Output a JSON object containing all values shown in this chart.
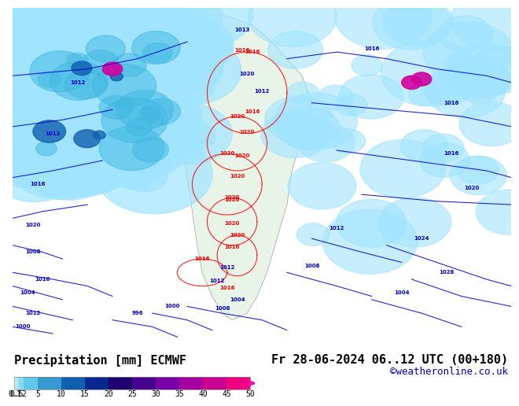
{
  "title_label": "Precipitation [mm] ECMWF",
  "date_label": "Fr 28-06-2024 06..12 UTC (00+180)",
  "credit_label": "©weatheronline.co.uk",
  "colorbar_values": [
    0.1,
    0.5,
    1,
    2,
    5,
    10,
    15,
    20,
    25,
    30,
    35,
    40,
    45,
    50
  ],
  "colorbar_colors": [
    "#e0f8ff",
    "#c0eeff",
    "#a0e4ff",
    "#70d0f0",
    "#40b8e0",
    "#2090d0",
    "#1060b0",
    "#0030a0",
    "#200080",
    "#5000a0",
    "#8000b0",
    "#b000b0",
    "#d000a0",
    "#f00090",
    "#ff00c0"
  ],
  "bg_color": "#ffffff",
  "map_bg": "#e8f4e8",
  "ocean_color": "#b0e8f8",
  "title_fontsize": 11,
  "date_fontsize": 11,
  "credit_fontsize": 9,
  "label_fontsize": 9
}
